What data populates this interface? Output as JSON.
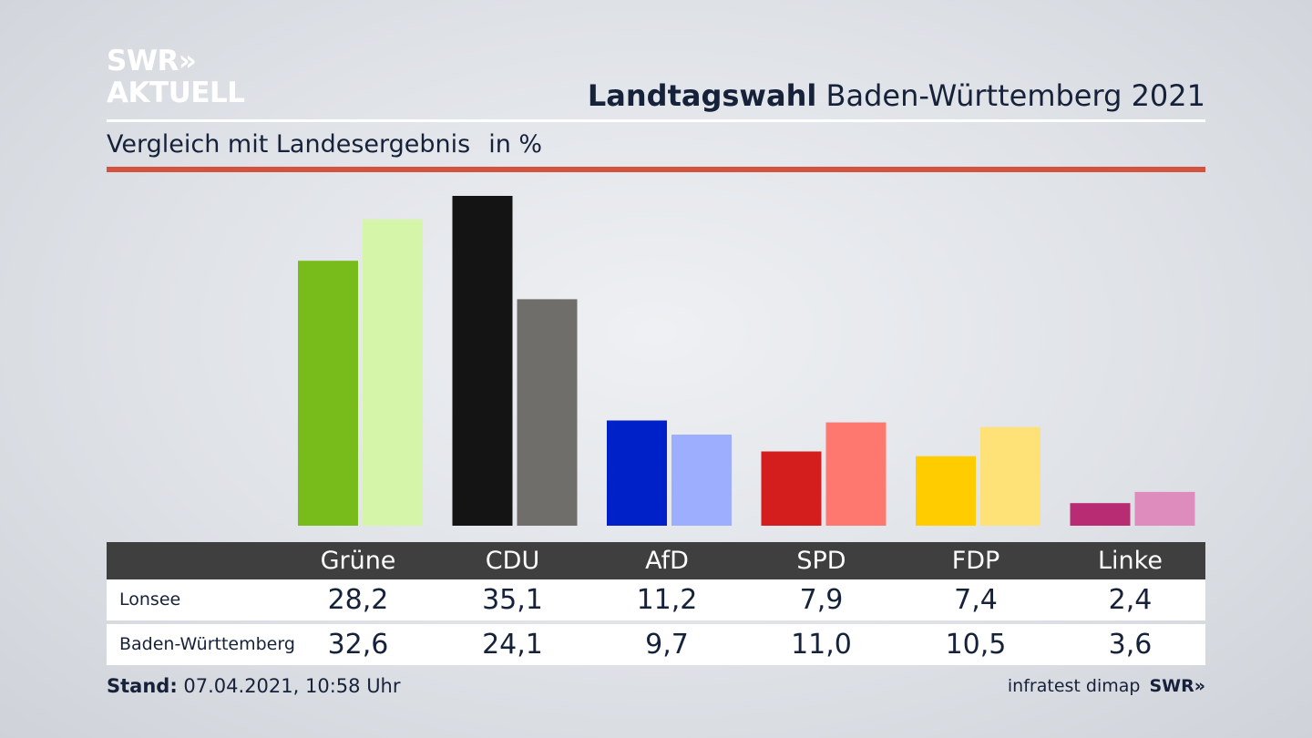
{
  "logo": {
    "line1": "SWR»",
    "line2": "AKTUELL"
  },
  "header": {
    "title_bold": "Landtagswahl",
    "title_rest": "Baden-Württemberg 2021",
    "subtitle": "Vergleich mit Landesergebnis",
    "unit": "in %"
  },
  "colors": {
    "accent_rule": "#d4533f",
    "table_header_bg": "#3f3f3f"
  },
  "chart_data": {
    "type": "bar",
    "categories": [
      "Grüne",
      "CDU",
      "AfD",
      "SPD",
      "FDP",
      "Linke"
    ],
    "series": [
      {
        "name": "Lonsee",
        "values": [
          28.2,
          35.1,
          11.2,
          7.9,
          7.4,
          2.4
        ],
        "display": [
          "28,2",
          "35,1",
          "11,2",
          "7,9",
          "7,4",
          "2,4"
        ],
        "colors": [
          "#78bc1c",
          "#141414",
          "#0020c8",
          "#d41e1e",
          "#ffcc00",
          "#b72c73"
        ]
      },
      {
        "name": "Baden-Württemberg",
        "values": [
          32.6,
          24.1,
          9.7,
          11.0,
          10.5,
          3.6
        ],
        "display": [
          "32,6",
          "24,1",
          "9,7",
          "11,0",
          "10,5",
          "3,6"
        ],
        "colors": [
          "#d5f5a9",
          "#706e6b",
          "#9daeff",
          "#ff7870",
          "#ffe277",
          "#dd8cbd"
        ]
      }
    ],
    "ylim": [
      0,
      35.1
    ],
    "grid": false,
    "legend": "table-below"
  },
  "footer": {
    "stand_label": "Stand:",
    "stand_value": "07.04.2021, 10:58 Uhr",
    "source": "infratest dimap",
    "brand": "SWR»"
  }
}
